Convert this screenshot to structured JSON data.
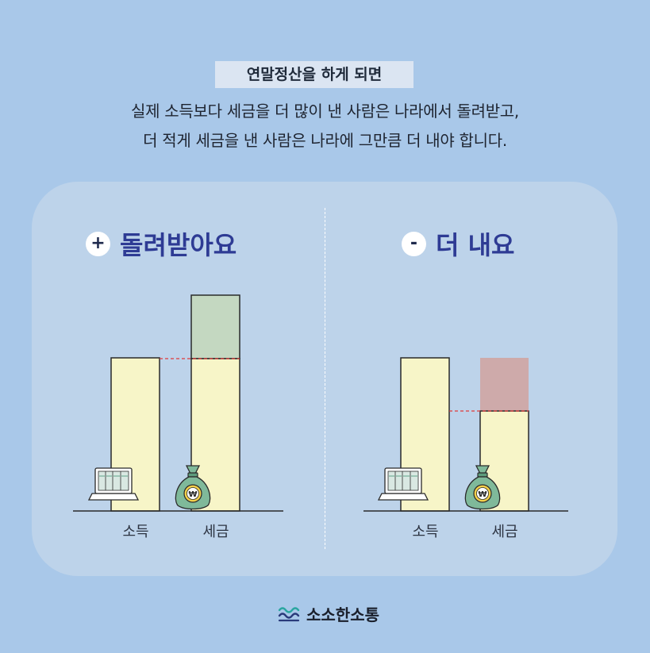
{
  "header": {
    "tag": "연말정산을 하게 되면",
    "line1": "실제 소득보다 세금을 더 많이 낸 사람은 나라에서 돌려받고,",
    "line2": "더 적게 세금을 낸 사람은 나라에 그만큼 더 내야 합니다."
  },
  "panels": {
    "left": {
      "badge": "+",
      "title": "돌려받아요",
      "x_labels": [
        "소득",
        "세금"
      ]
    },
    "right": {
      "badge": "-",
      "title": "더 내요",
      "x_labels": [
        "소득",
        "세금"
      ]
    }
  },
  "icons": {
    "laptop": "laptop-icon",
    "money_bag": "money-bag-icon",
    "money_bag_symbol": "₩",
    "logo": "wave-logo-icon"
  },
  "colors": {
    "bar_fill": "#f7f5c8",
    "refund_fill": "#c4d8c1",
    "owe_fill": "#ceaaaa",
    "dash": "#e03a3a",
    "heading": "#2e3b94"
  },
  "brand": "소소한소통"
}
